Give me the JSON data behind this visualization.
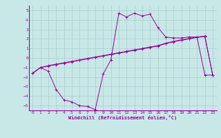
{
  "xlabel": "Windchill (Refroidissement éolien,°C)",
  "background_color": "#c8e8e8",
  "grid_color": "#aacccc",
  "line_color": "#990099",
  "xlim": [
    -0.5,
    23.5
  ],
  "ylim": [
    -5.5,
    5.5
  ],
  "yticks": [
    -5,
    -4,
    -3,
    -2,
    -1,
    0,
    1,
    2,
    3,
    4,
    5
  ],
  "xticks": [
    0,
    1,
    2,
    3,
    4,
    5,
    6,
    7,
    8,
    9,
    10,
    11,
    12,
    13,
    14,
    15,
    16,
    17,
    18,
    19,
    20,
    21,
    22,
    23
  ],
  "line1_x": [
    0,
    1,
    2,
    3,
    4,
    5,
    6,
    7,
    8,
    9,
    10,
    11,
    12,
    13,
    14,
    15,
    16,
    17,
    18,
    19,
    20,
    21,
    22,
    23
  ],
  "line1_y": [
    -1.6,
    -1.0,
    -1.4,
    -3.3,
    -4.4,
    -4.6,
    -5.0,
    -5.1,
    -5.4,
    -1.7,
    -0.2,
    4.7,
    4.3,
    4.7,
    4.4,
    4.6,
    3.2,
    2.2,
    2.1,
    2.1,
    2.2,
    2.2,
    -1.8,
    -1.8
  ],
  "line2_x": [
    0,
    1,
    2,
    3,
    4,
    5,
    6,
    7,
    8,
    9,
    10,
    11,
    12,
    13,
    14,
    15,
    16,
    17,
    18,
    19,
    20,
    21,
    22,
    23
  ],
  "line2_y": [
    -1.6,
    -1.0,
    -0.85,
    -0.7,
    -0.55,
    -0.4,
    -0.25,
    -0.1,
    0.05,
    0.2,
    0.35,
    0.5,
    0.65,
    0.8,
    0.95,
    1.1,
    1.25,
    1.5,
    1.7,
    1.85,
    2.0,
    2.15,
    2.25,
    -1.8
  ],
  "line3_x": [
    0,
    1,
    2,
    3,
    4,
    5,
    6,
    7,
    8,
    9,
    10,
    11,
    12,
    13,
    14,
    15,
    16,
    17,
    18,
    19,
    20,
    21,
    22,
    23
  ],
  "line3_y": [
    -1.6,
    -1.0,
    -0.8,
    -0.65,
    -0.5,
    -0.35,
    -0.2,
    -0.05,
    0.1,
    0.25,
    0.4,
    0.55,
    0.7,
    0.85,
    1.0,
    1.15,
    1.3,
    1.55,
    1.75,
    1.9,
    2.05,
    2.2,
    2.3,
    -1.8
  ]
}
